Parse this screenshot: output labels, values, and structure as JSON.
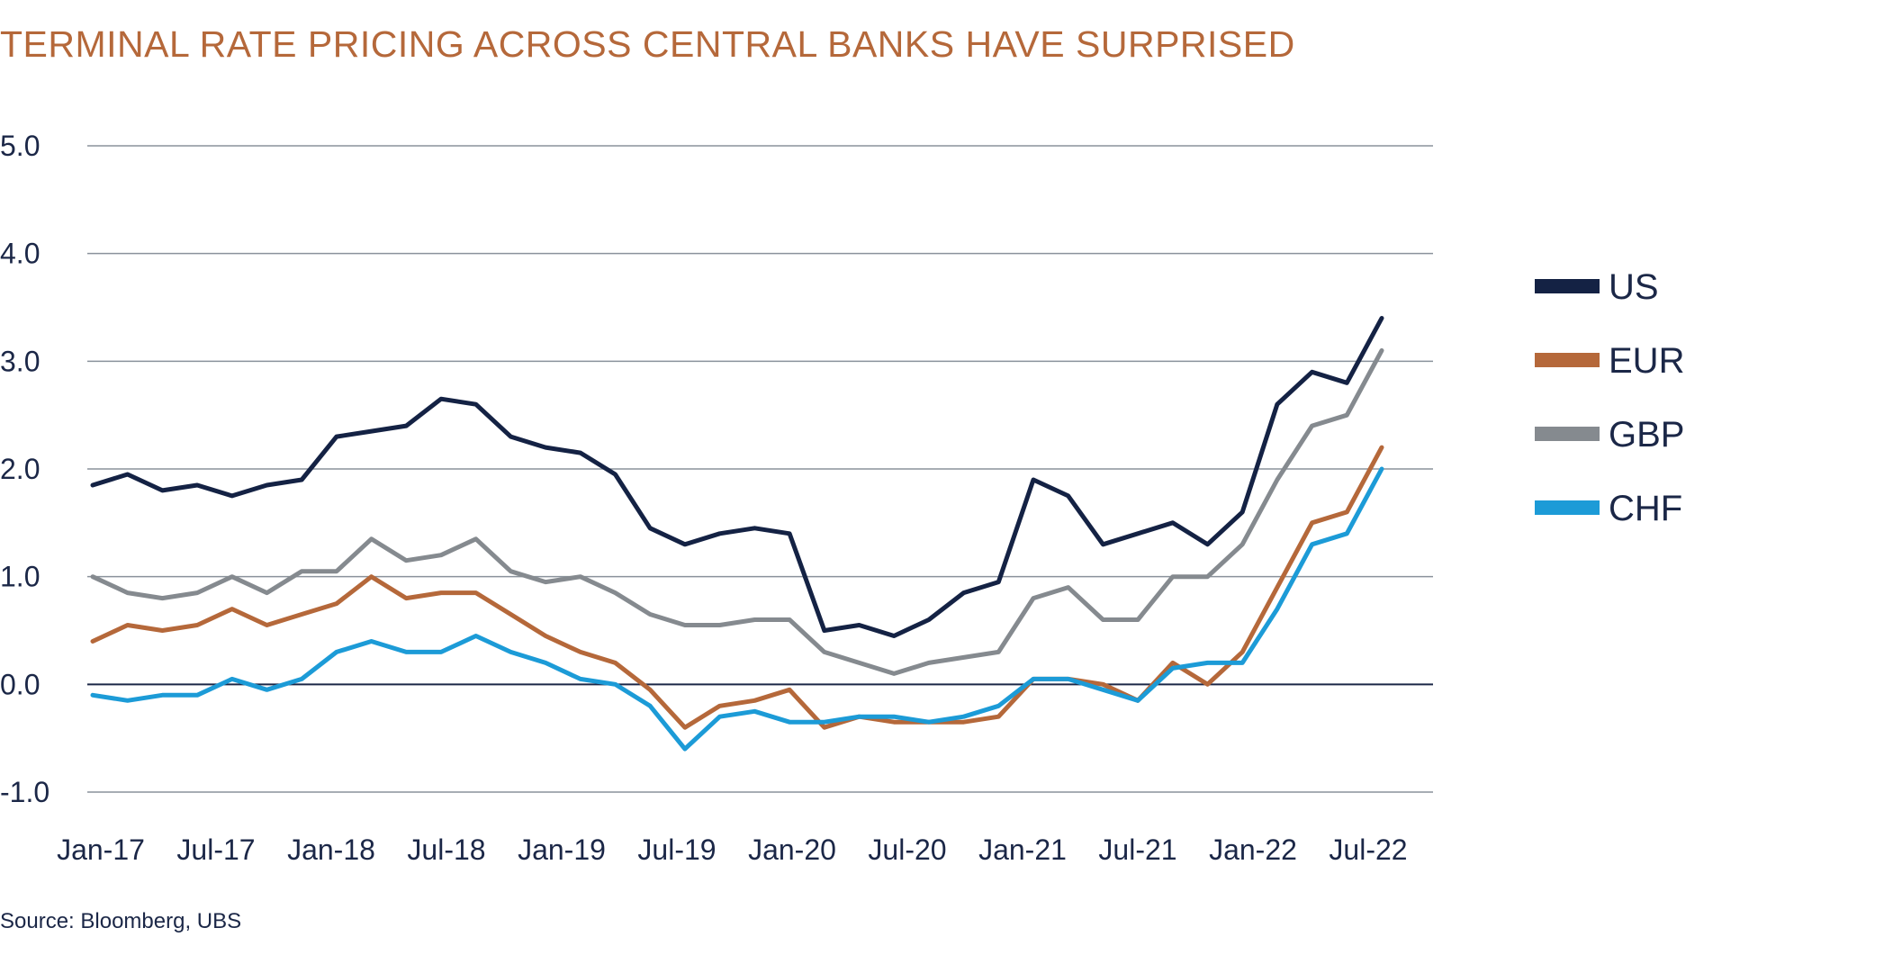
{
  "title": "TERMINAL RATE PRICING ACROSS CENTRAL BANKS HAVE SURPRISED",
  "source": "Source: Bloomberg, UBS",
  "chart_data": {
    "type": "line",
    "title": "TERMINAL RATE PRICING ACROSS CENTRAL BANKS HAVE SURPRISED",
    "xlabel": "",
    "ylabel": "",
    "ylim": [
      -1.0,
      5.0
    ],
    "y_ticks": [
      "5.0",
      "4.0",
      "3.0",
      "2.0",
      "1.0",
      "0.0",
      "-1.0"
    ],
    "x_ticks": [
      "Jan-17",
      "Jul-17",
      "Jan-18",
      "Jul-18",
      "Jan-19",
      "Jul-19",
      "Jan-20",
      "Jul-20",
      "Jan-21",
      "Jul-21",
      "Jan-22",
      "Jul-22"
    ],
    "grid": true,
    "legend_position": "right",
    "x": [
      "Jan-17",
      "Mar-17",
      "May-17",
      "Jul-17",
      "Sep-17",
      "Nov-17",
      "Jan-18",
      "Mar-18",
      "May-18",
      "Jul-18",
      "Sep-18",
      "Oct-18",
      "Nov-18",
      "Jan-19",
      "Mar-19",
      "May-19",
      "Jul-19",
      "Sep-19",
      "Nov-19",
      "Jan-20",
      "Feb-20",
      "Mar-20",
      "May-20",
      "Jul-20",
      "Sep-20",
      "Nov-20",
      "Jan-21",
      "Mar-21",
      "May-21",
      "Jul-21",
      "Sep-21",
      "Nov-21",
      "Jan-22",
      "Mar-22",
      "Apr-22",
      "May-22",
      "Jun-22",
      "Jul-22"
    ],
    "series": [
      {
        "name": "US",
        "color": "#142244",
        "values": [
          1.85,
          1.95,
          1.8,
          1.85,
          1.75,
          1.85,
          1.9,
          2.3,
          2.35,
          2.4,
          2.65,
          2.6,
          2.3,
          2.2,
          2.15,
          1.95,
          1.45,
          1.3,
          1.4,
          1.45,
          1.4,
          0.5,
          0.55,
          0.45,
          0.6,
          0.85,
          0.95,
          1.9,
          1.75,
          1.3,
          1.4,
          1.5,
          1.3,
          1.6,
          2.6,
          2.9,
          2.8,
          3.4
        ]
      },
      {
        "name": "EUR",
        "color": "#b5683a",
        "values": [
          0.4,
          0.55,
          0.5,
          0.55,
          0.7,
          0.55,
          0.65,
          0.75,
          1.0,
          0.8,
          0.85,
          0.85,
          0.65,
          0.45,
          0.3,
          0.2,
          -0.05,
          -0.4,
          -0.2,
          -0.15,
          -0.05,
          -0.4,
          -0.3,
          -0.35,
          -0.35,
          -0.35,
          -0.3,
          0.05,
          0.05,
          0.0,
          -0.15,
          0.2,
          0.0,
          0.3,
          0.9,
          1.5,
          1.6,
          2.2
        ]
      },
      {
        "name": "GBP",
        "color": "#858a8f",
        "values": [
          1.0,
          0.85,
          0.8,
          0.85,
          1.0,
          0.85,
          1.05,
          1.05,
          1.35,
          1.15,
          1.2,
          1.35,
          1.05,
          0.95,
          1.0,
          0.85,
          0.65,
          0.55,
          0.55,
          0.6,
          0.6,
          0.3,
          0.2,
          0.1,
          0.2,
          0.25,
          0.3,
          0.8,
          0.9,
          0.6,
          0.6,
          1.0,
          1.0,
          1.3,
          1.9,
          2.4,
          2.5,
          3.1
        ]
      },
      {
        "name": "CHF",
        "color": "#1c9bd7",
        "values": [
          -0.1,
          -0.15,
          -0.1,
          -0.1,
          0.05,
          -0.05,
          0.05,
          0.3,
          0.4,
          0.3,
          0.3,
          0.45,
          0.3,
          0.2,
          0.05,
          0.0,
          -0.2,
          -0.6,
          -0.3,
          -0.25,
          -0.35,
          -0.35,
          -0.3,
          -0.3,
          -0.35,
          -0.3,
          -0.2,
          0.05,
          0.05,
          -0.05,
          -0.15,
          0.15,
          0.2,
          0.2,
          0.7,
          1.3,
          1.4,
          2.0
        ]
      }
    ]
  }
}
